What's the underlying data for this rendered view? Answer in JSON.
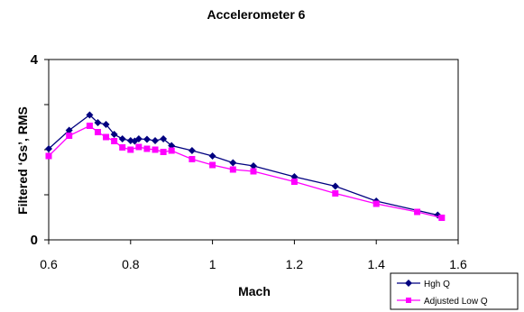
{
  "chart_data": {
    "type": "line",
    "title": "Accelerometer 6",
    "xlabel": "Mach",
    "ylabel": "Filtered ‘Gs’, RMS",
    "xlim": [
      0.6,
      1.6
    ],
    "ylim": [
      0,
      4
    ],
    "x_ticks": [
      "0.6",
      "0.8",
      "1",
      "1.2",
      "1.4",
      "1.6"
    ],
    "y_ticks": [
      "0",
      "4"
    ],
    "grid": false,
    "legend_position": "bottom-right",
    "series": [
      {
        "name": "High Q",
        "color": "#000080",
        "marker": "diamond",
        "x": [
          0.6,
          0.65,
          0.7,
          0.72,
          0.74,
          0.76,
          0.78,
          0.8,
          0.81,
          0.82,
          0.84,
          0.86,
          0.88,
          0.9,
          0.95,
          1.0,
          1.05,
          1.1,
          1.2,
          1.3,
          1.4,
          1.55
        ],
        "y": [
          2.02,
          2.43,
          2.77,
          2.6,
          2.56,
          2.34,
          2.24,
          2.2,
          2.19,
          2.24,
          2.23,
          2.2,
          2.24,
          2.09,
          1.98,
          1.86,
          1.71,
          1.64,
          1.4,
          1.19,
          0.86,
          0.55
        ]
      },
      {
        "name": "Adjusted Low Q",
        "color": "#ff00ff",
        "marker": "square",
        "x": [
          0.6,
          0.65,
          0.7,
          0.72,
          0.74,
          0.76,
          0.78,
          0.8,
          0.82,
          0.84,
          0.86,
          0.88,
          0.9,
          0.95,
          1.0,
          1.05,
          1.1,
          1.2,
          1.3,
          1.4,
          1.5,
          1.56
        ],
        "y": [
          1.86,
          2.31,
          2.53,
          2.39,
          2.28,
          2.19,
          2.05,
          2.0,
          2.06,
          2.02,
          2.0,
          1.95,
          1.98,
          1.79,
          1.66,
          1.56,
          1.52,
          1.29,
          1.03,
          0.8,
          0.62,
          0.49
        ]
      }
    ]
  },
  "legend": {
    "items": [
      {
        "label": "Hgh Q"
      },
      {
        "label": "Adjusted Low Q"
      }
    ]
  }
}
